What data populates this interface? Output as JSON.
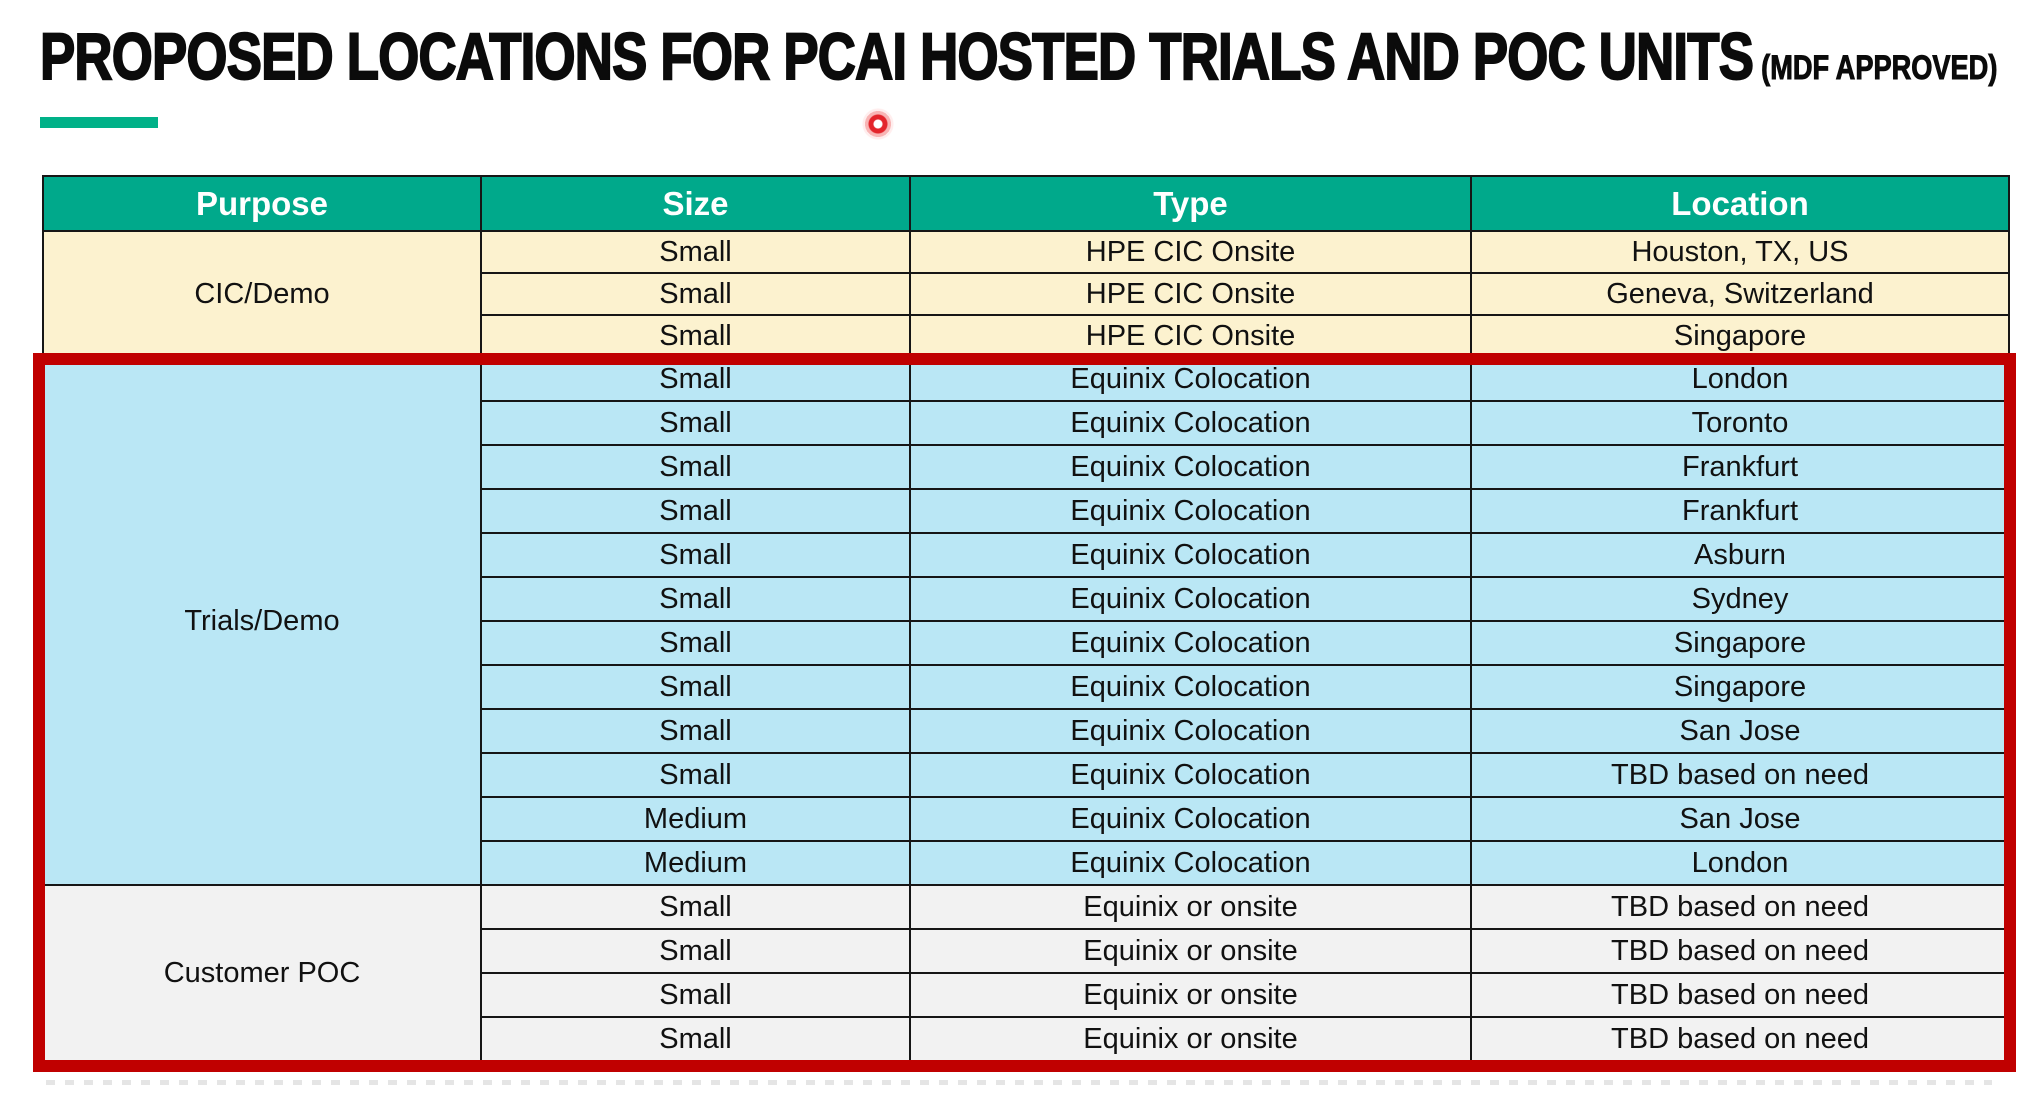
{
  "title": {
    "main": "PROPOSED LOCATIONS FOR PCAI HOSTED TRIALS AND POC UNITS",
    "suffix": "(MDF APPROVED)"
  },
  "colors": {
    "accent_green": "#00B188",
    "header_green": "#00A98B",
    "header_text": "#FFFFFF",
    "highlight_red": "#C00000",
    "laser_red": "#E3242B",
    "cic_bg": "#FCF2CF",
    "trials_bg": "#BAE7F5",
    "poc_bg": "#F2F2F2"
  },
  "annotations": {
    "laser_pointer_dot": "red laser pointer dot",
    "highlight_box": "red rectangle around Trials/Demo and Customer POC sections"
  },
  "table": {
    "headers": [
      "Purpose",
      "Size",
      "Type",
      "Location"
    ],
    "sections": [
      {
        "purpose": "CIC/Demo",
        "bg": "#FCF2CF",
        "highlighted": false,
        "rows": [
          [
            "Small",
            "HPE CIC Onsite",
            "Houston, TX, US"
          ],
          [
            "Small",
            "HPE CIC Onsite",
            "Geneva, Switzerland"
          ],
          [
            "Small",
            "HPE CIC Onsite",
            "Singapore"
          ]
        ]
      },
      {
        "purpose": "Trials/Demo",
        "bg": "#BAE7F5",
        "highlighted": true,
        "rows": [
          [
            "Small",
            "Equinix Colocation",
            "London"
          ],
          [
            "Small",
            "Equinix Colocation",
            "Toronto"
          ],
          [
            "Small",
            "Equinix Colocation",
            "Frankfurt"
          ],
          [
            "Small",
            "Equinix Colocation",
            "Frankfurt"
          ],
          [
            "Small",
            "Equinix Colocation",
            "Asburn"
          ],
          [
            "Small",
            "Equinix Colocation",
            "Sydney"
          ],
          [
            "Small",
            "Equinix Colocation",
            "Singapore"
          ],
          [
            "Small",
            "Equinix Colocation",
            "Singapore"
          ],
          [
            "Small",
            "Equinix Colocation",
            "San Jose"
          ],
          [
            "Small",
            "Equinix Colocation",
            "TBD based on need"
          ],
          [
            "Medium",
            "Equinix Colocation",
            "San Jose"
          ],
          [
            "Medium",
            "Equinix Colocation",
            "London"
          ]
        ]
      },
      {
        "purpose": "Customer POC",
        "bg": "#F2F2F2",
        "highlighted": true,
        "rows": [
          [
            "Small",
            "Equinix or onsite",
            "TBD based on need"
          ],
          [
            "Small",
            "Equinix or onsite",
            "TBD based on need"
          ],
          [
            "Small",
            "Equinix or onsite",
            "TBD based on need"
          ],
          [
            "Small",
            "Equinix or onsite",
            "TBD based on need"
          ]
        ]
      }
    ]
  }
}
